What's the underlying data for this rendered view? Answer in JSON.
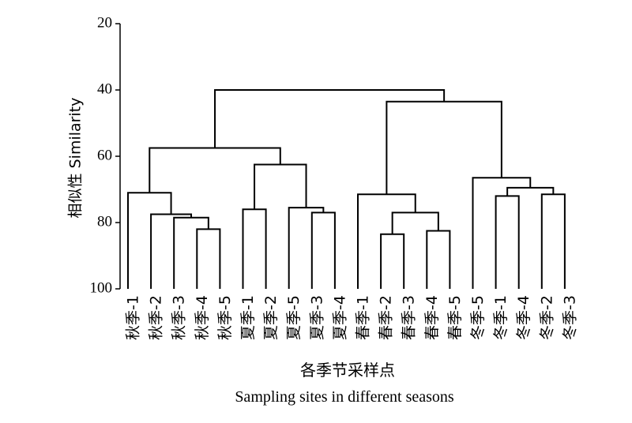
{
  "chart_data": {
    "type": "dendrogram",
    "ylabel": "相似性 Similarity",
    "xlabel_cn": "各季节采样点",
    "xlabel_en": "Sampling sites in different seasons",
    "ylim": [
      20,
      100
    ],
    "yticks": [
      "20",
      "40",
      "60",
      "80",
      "100"
    ],
    "leaves": [
      "秋季-1",
      "秋季-2",
      "秋季-3",
      "秋季-4",
      "秋季-5",
      "夏季-1",
      "夏季-2",
      "夏季-5",
      "夏季-3",
      "夏季-4",
      "春季-1",
      "春季-2",
      "春季-3",
      "春季-4",
      "春季-5",
      "冬季-5",
      "冬季-1",
      "冬季-4",
      "冬季-2",
      "冬季-3"
    ],
    "merges": [
      {
        "id": "c1",
        "left": "秋季-4",
        "right": "秋季-5",
        "similarity": 82
      },
      {
        "id": "c2",
        "left": "秋季-3",
        "right": "c1",
        "similarity": 78.5
      },
      {
        "id": "c3",
        "left": "秋季-2",
        "right": "c2",
        "similarity": 77.5
      },
      {
        "id": "c4",
        "left": "秋季-1",
        "right": "c3",
        "similarity": 71
      },
      {
        "id": "c5",
        "left": "夏季-1",
        "right": "夏季-2",
        "similarity": 76
      },
      {
        "id": "c6",
        "left": "夏季-3",
        "right": "夏季-4",
        "similarity": 77
      },
      {
        "id": "c7",
        "left": "夏季-5",
        "right": "c6",
        "similarity": 75.5
      },
      {
        "id": "c8",
        "left": "c5",
        "right": "c7",
        "similarity": 62.5
      },
      {
        "id": "c9",
        "left": "c4",
        "right": "c8",
        "similarity": 57.5
      },
      {
        "id": "c10",
        "left": "春季-2",
        "right": "春季-3",
        "similarity": 83.5
      },
      {
        "id": "c11",
        "left": "春季-4",
        "right": "春季-5",
        "similarity": 82.5
      },
      {
        "id": "c12",
        "left": "c10",
        "right": "c11",
        "similarity": 77
      },
      {
        "id": "c13",
        "left": "春季-1",
        "right": "c12",
        "similarity": 71.5
      },
      {
        "id": "c14",
        "left": "冬季-1",
        "right": "冬季-4",
        "similarity": 72
      },
      {
        "id": "c15",
        "left": "冬季-2",
        "right": "冬季-3",
        "similarity": 71.5
      },
      {
        "id": "c16",
        "left": "c14",
        "right": "c15",
        "similarity": 69.5
      },
      {
        "id": "c17",
        "left": "冬季-5",
        "right": "c16",
        "similarity": 66.5
      },
      {
        "id": "c18",
        "left": "c13",
        "right": "c17",
        "similarity": 43.5
      },
      {
        "id": "c19",
        "left": "c9",
        "right": "c18",
        "similarity": 40
      }
    ]
  }
}
